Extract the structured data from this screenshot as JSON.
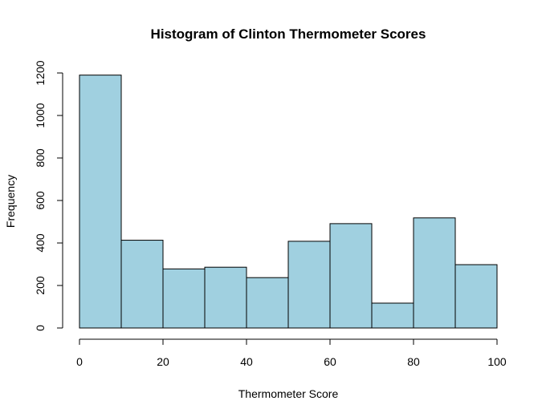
{
  "chart_data": {
    "type": "bar",
    "title": "Histogram of Clinton Thermometer Scores",
    "xlabel": "Thermometer Score",
    "ylabel": "Frequency",
    "bins": [
      [
        0,
        10
      ],
      [
        10,
        20
      ],
      [
        20,
        30
      ],
      [
        30,
        40
      ],
      [
        40,
        50
      ],
      [
        50,
        60
      ],
      [
        60,
        70
      ],
      [
        70,
        80
      ],
      [
        80,
        90
      ],
      [
        90,
        100
      ]
    ],
    "values": [
      1190,
      413,
      278,
      286,
      237,
      408,
      491,
      117,
      518,
      298
    ],
    "x_ticks": [
      0,
      20,
      40,
      60,
      80,
      100
    ],
    "x_tick_labels": [
      "0",
      "20",
      "40",
      "60",
      "80",
      "100"
    ],
    "y_ticks": [
      0,
      200,
      400,
      600,
      800,
      1000,
      1200
    ],
    "y_tick_labels": [
      "0",
      "200",
      "400",
      "600",
      "800",
      "1000",
      "1200"
    ],
    "xlim": [
      0,
      100
    ],
    "ylim": [
      0,
      1200
    ],
    "grid": false,
    "bar_color": "#a0d0e0"
  }
}
